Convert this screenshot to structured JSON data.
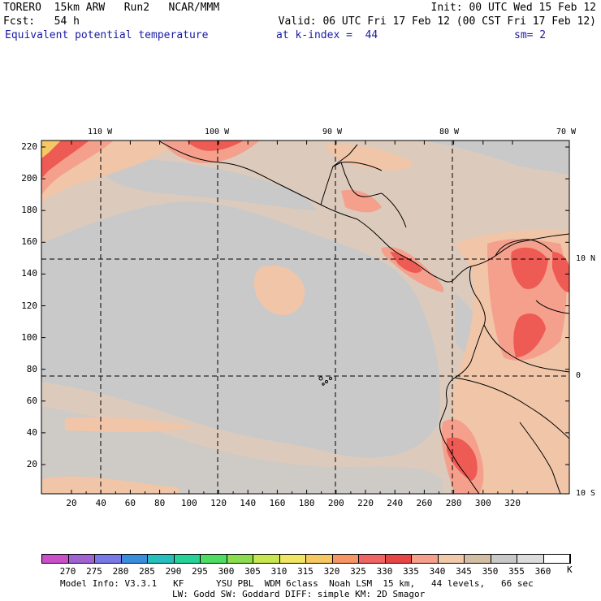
{
  "header": {
    "model": "TORERO",
    "resolution": "15km ARW",
    "run": "Run2",
    "org": "NCAR/MMM",
    "init": "Init: 00 UTC Wed 15 Feb 12",
    "fcst_label": "Fcst:",
    "fcst_value": "54 h",
    "valid": "Valid: 06 UTC Fri 17 Feb 12 (00 CST Fri 17 Feb 12)",
    "field": "Equivalent potential temperature",
    "level": "at k-index =  44",
    "smooth": "sm= 2"
  },
  "map": {
    "lon_labels": [
      "110 W",
      "100 W",
      "90 W",
      "80 W",
      "70 W"
    ],
    "lat_labels": [
      "10 N",
      "0",
      "10 S"
    ],
    "x_ticks": [
      "20",
      "40",
      "60",
      "80",
      "100",
      "120",
      "140",
      "160",
      "180",
      "200",
      "220",
      "240",
      "260",
      "280",
      "300",
      "320"
    ],
    "y_ticks": [
      "220",
      "200",
      "180",
      "160",
      "140",
      "120",
      "100",
      "80",
      "60",
      "40",
      "20"
    ]
  },
  "colorbar": {
    "unit": "K",
    "levels": [
      "270",
      "275",
      "280",
      "285",
      "290",
      "295",
      "300",
      "305",
      "310",
      "315",
      "320",
      "325",
      "330",
      "335",
      "340",
      "345",
      "350",
      "355",
      "360"
    ],
    "colors": [
      "#c850c8",
      "#a064d2",
      "#7878e6",
      "#3c8cdc",
      "#28bebe",
      "#28d296",
      "#50dc64",
      "#8cdc50",
      "#c8e650",
      "#f0e664",
      "#f5c864",
      "#f59664",
      "#f06464",
      "#e64646",
      "#f5a08c",
      "#f0c8aa",
      "#d2bea5",
      "#c8c8c8",
      "#dcdcdc",
      "#ffffff"
    ]
  },
  "footer": {
    "line1": "Model Info: V3.3.1   KF      YSU PBL  WDM 6class  Noah LSM  15 km,   44 levels,   66 sec",
    "line2": "LW: Godd SW: Goddard DIFF: simple KM: 2D Smagor"
  }
}
